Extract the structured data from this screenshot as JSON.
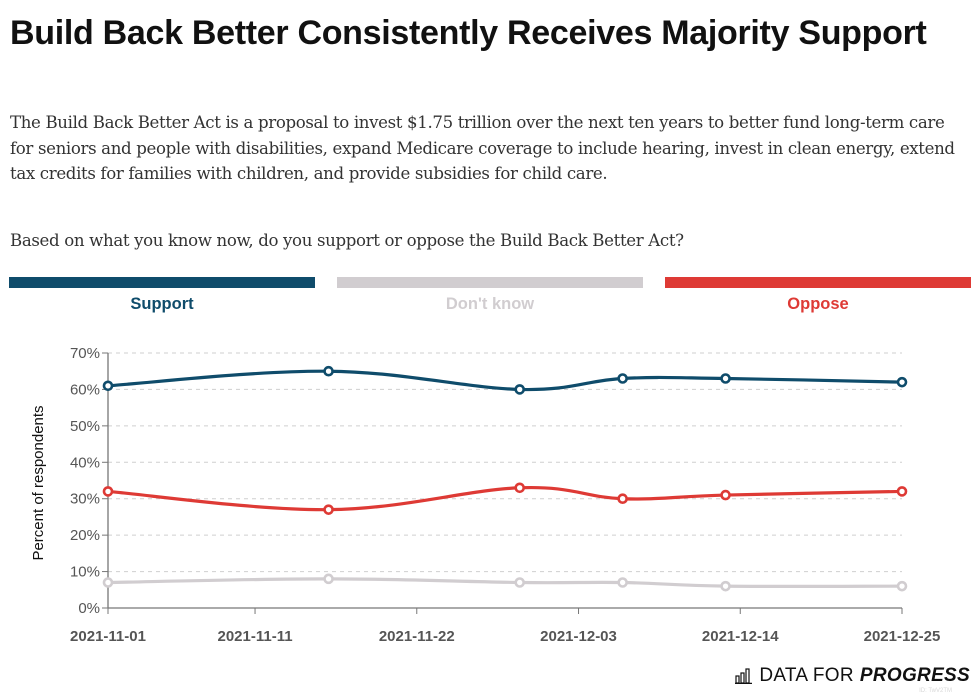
{
  "header": {
    "title": "Build Back Better Consistently Receives Majority Support",
    "description": "The Build Back Better Act is a proposal to invest $1.75 trillion over the next ten years to better fund long-term care for seniors and people with disabilities, expand Medicare coverage to include hearing, invest in clean energy, extend tax credits for families with children, and provide subsidies for child care.",
    "question": "Based on what you know now, do you support or oppose the Build Back Better Act?"
  },
  "legend": [
    {
      "label": "Support",
      "color": "#0f4c6b"
    },
    {
      "label": "Don't know",
      "color": "#d1cdd0"
    },
    {
      "label": "Oppose",
      "color": "#de3a35"
    }
  ],
  "footer": {
    "brand_light": "DATA FOR",
    "brand_bold": "PROGRESS",
    "logo_icon": "bar-chart-icon",
    "id_text": "ID: TwV2TM"
  },
  "chart_data": {
    "type": "line",
    "title": "Build Back Better Consistently Receives Majority Support",
    "xlabel": "",
    "ylabel": "Percent of respondents",
    "ylim": [
      0,
      70
    ],
    "y_ticks": [
      0,
      10,
      20,
      30,
      40,
      50,
      60,
      70
    ],
    "y_tick_labels": [
      "0%",
      "10%",
      "20%",
      "30%",
      "40%",
      "50%",
      "60%",
      "70%"
    ],
    "x_range": [
      "2021-11-01",
      "2021-12-25"
    ],
    "x_ticks": [
      "2021-11-01",
      "2021-11-11",
      "2021-11-22",
      "2021-12-03",
      "2021-12-14",
      "2021-12-25"
    ],
    "grid": true,
    "legend_position": "top",
    "x": [
      "2021-11-01",
      "2021-11-16",
      "2021-11-29",
      "2021-12-06",
      "2021-12-13",
      "2021-12-25"
    ],
    "series": [
      {
        "name": "Support",
        "color": "#0f4c6b",
        "values": [
          61,
          65,
          60,
          63,
          63,
          62
        ]
      },
      {
        "name": "Oppose",
        "color": "#de3a35",
        "values": [
          32,
          27,
          33,
          30,
          31,
          32
        ]
      },
      {
        "name": "Don't know",
        "color": "#d1cdd0",
        "values": [
          7,
          8,
          7,
          7,
          6,
          6
        ]
      }
    ]
  }
}
